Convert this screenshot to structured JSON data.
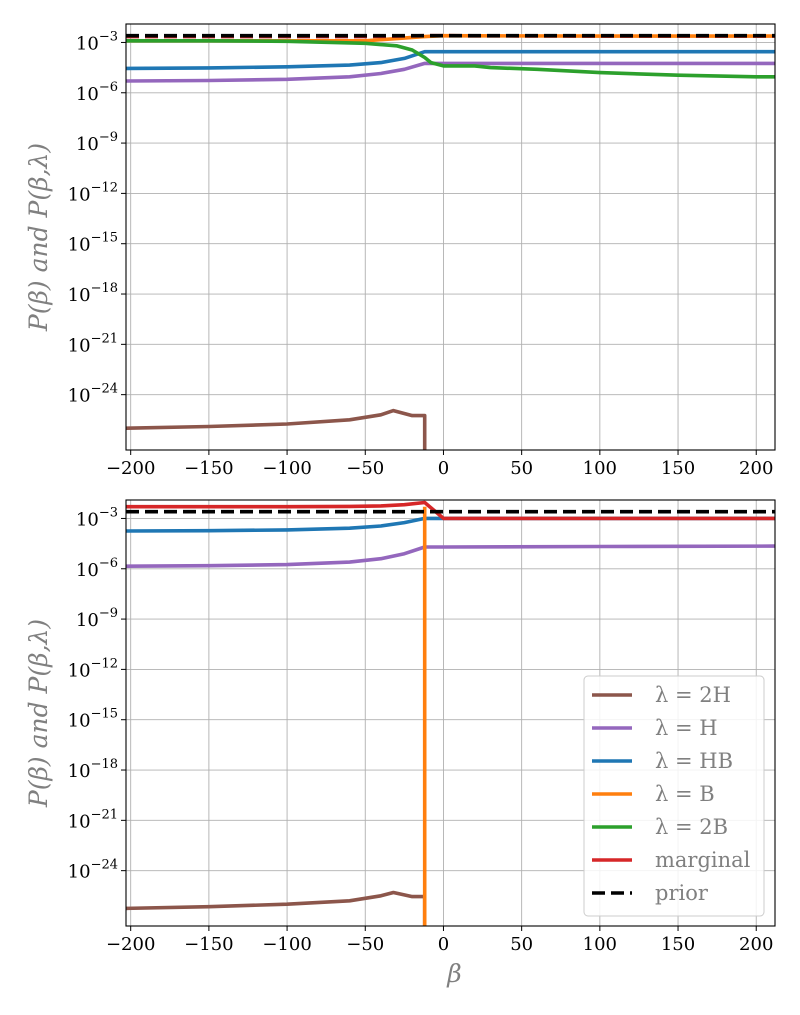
{
  "chart_data": [
    {
      "type": "line",
      "yscale": "log",
      "ylabel": "P(β) and P(β,λ)",
      "xlabel": "",
      "xlim": [
        -203,
        212
      ],
      "ylim_log10": [
        -27.3,
        -1.9
      ],
      "xticks": [
        -200,
        -150,
        -100,
        -50,
        0,
        50,
        100,
        150,
        200
      ],
      "xtick_labels": [
        "−200",
        "−150",
        "−100",
        "−50",
        "0",
        "50",
        "100",
        "150",
        "200"
      ],
      "yticks_log10": [
        -3,
        -6,
        -9,
        -12,
        -15,
        -18,
        -21,
        -24
      ],
      "ytick_labels": [
        "10",
        "10",
        "10",
        "10",
        "10",
        "10",
        "10",
        "10"
      ],
      "ytick_exponents": [
        "−3",
        "−6",
        "−9",
        "−12",
        "−15",
        "−18",
        "−21",
        "−24"
      ],
      "grid": true,
      "series": [
        {
          "name": "λ = 2H",
          "color": "#8c564b",
          "dashed": false,
          "x": [
            -203,
            -150,
            -100,
            -60,
            -40,
            -32,
            -20,
            -12,
            -12
          ],
          "log10y": [
            -26.0,
            -25.9,
            -25.75,
            -25.5,
            -25.2,
            -24.95,
            -25.25,
            -25.25,
            -27.3
          ]
        },
        {
          "name": "λ = H",
          "color": "#9467bd",
          "dashed": false,
          "x": [
            -203,
            -150,
            -100,
            -60,
            -40,
            -25,
            -12,
            0,
            100,
            212
          ],
          "log10y": [
            -5.3,
            -5.27,
            -5.2,
            -5.05,
            -4.85,
            -4.6,
            -4.25,
            -4.25,
            -4.25,
            -4.25
          ]
        },
        {
          "name": "λ = HB",
          "color": "#1f77b4",
          "dashed": false,
          "x": [
            -203,
            -150,
            -100,
            -60,
            -40,
            -25,
            -12,
            0,
            100,
            212
          ],
          "log10y": [
            -4.55,
            -4.52,
            -4.45,
            -4.35,
            -4.2,
            -3.95,
            -3.55,
            -3.55,
            -3.55,
            -3.55
          ]
        },
        {
          "name": "λ = B",
          "color": "#ff7f0e",
          "dashed": false,
          "x": [
            -203,
            -100,
            -50,
            -12,
            0,
            100,
            212
          ],
          "log10y": [
            -2.9,
            -2.9,
            -2.9,
            -2.65,
            -2.6,
            -2.62,
            -2.62
          ]
        },
        {
          "name": "λ = 2B",
          "color": "#2ca02c",
          "dashed": false,
          "x": [
            -203,
            -150,
            -100,
            -50,
            -30,
            -20,
            -12,
            -8,
            0,
            20,
            30,
            60,
            100,
            150,
            200,
            212
          ],
          "log10y": [
            -2.9,
            -2.9,
            -2.93,
            -3.05,
            -3.2,
            -3.45,
            -3.9,
            -4.2,
            -4.4,
            -4.4,
            -4.5,
            -4.6,
            -4.8,
            -4.95,
            -5.05,
            -5.05
          ]
        },
        {
          "name": "marginal",
          "color": "#d62728",
          "dashed": true,
          "x": [
            -203,
            -100,
            -50,
            -12,
            0,
            100,
            212
          ],
          "log10y": [
            -2.65,
            -2.65,
            -2.65,
            -2.6,
            -2.6,
            -2.62,
            -2.62
          ]
        },
        {
          "name": "prior",
          "color": "#000000",
          "dashed": true,
          "x": [
            -203,
            212
          ],
          "log10y": [
            -2.6,
            -2.6
          ]
        }
      ]
    },
    {
      "type": "line",
      "yscale": "log",
      "ylabel": "P(β) and P(β,λ)",
      "xlabel": "β",
      "xlim": [
        -203,
        212
      ],
      "ylim_log10": [
        -27.3,
        -1.9
      ],
      "xticks": [
        -200,
        -150,
        -100,
        -50,
        0,
        50,
        100,
        150,
        200
      ],
      "xtick_labels": [
        "−200",
        "−150",
        "−100",
        "−50",
        "0",
        "50",
        "100",
        "150",
        "200"
      ],
      "yticks_log10": [
        -3,
        -6,
        -9,
        -12,
        -15,
        -18,
        -21,
        -24
      ],
      "ytick_labels": [
        "10",
        "10",
        "10",
        "10",
        "10",
        "10",
        "10",
        "10"
      ],
      "ytick_exponents": [
        "−3",
        "−6",
        "−9",
        "−12",
        "−15",
        "−18",
        "−21",
        "−24"
      ],
      "grid": true,
      "legend_position": "bottom-right",
      "series": [
        {
          "name": "λ = 2H",
          "color": "#8c564b",
          "dashed": false,
          "x": [
            -203,
            -150,
            -100,
            -60,
            -40,
            -32,
            -20,
            -12,
            -12
          ],
          "log10y": [
            -26.25,
            -26.15,
            -26.0,
            -25.8,
            -25.5,
            -25.3,
            -25.55,
            -25.55,
            -27.3
          ]
        },
        {
          "name": "λ = H",
          "color": "#9467bd",
          "dashed": false,
          "x": [
            -203,
            -150,
            -100,
            -60,
            -40,
            -25,
            -12,
            0,
            100,
            212
          ],
          "log10y": [
            -5.85,
            -5.82,
            -5.75,
            -5.6,
            -5.4,
            -5.1,
            -4.7,
            -4.7,
            -4.67,
            -4.65
          ]
        },
        {
          "name": "λ = HB",
          "color": "#1f77b4",
          "dashed": false,
          "x": [
            -203,
            -150,
            -100,
            -60,
            -40,
            -25,
            -12,
            0,
            100,
            212
          ],
          "log10y": [
            -3.75,
            -3.73,
            -3.68,
            -3.58,
            -3.45,
            -3.25,
            -3.0,
            -3.0,
            -3.0,
            -3.0
          ]
        },
        {
          "name": "λ = B",
          "color": "#ff7f0e",
          "dashed": false,
          "x": [
            -12,
            -12
          ],
          "log10y": [
            -27.3,
            -2.3
          ]
        },
        {
          "name": "λ = 2B",
          "color": "#2ca02c",
          "dashed": false,
          "x": [],
          "log10y": []
        },
        {
          "name": "marginal",
          "color": "#d62728",
          "dashed": false,
          "x": [
            -203,
            -150,
            -100,
            -60,
            -40,
            -25,
            -12,
            0,
            100,
            212
          ],
          "log10y": [
            -2.3,
            -2.3,
            -2.3,
            -2.28,
            -2.25,
            -2.18,
            -2.05,
            -3.0,
            -3.0,
            -3.0
          ]
        },
        {
          "name": "prior",
          "color": "#000000",
          "dashed": true,
          "x": [
            -203,
            212
          ],
          "log10y": [
            -2.6,
            -2.6
          ]
        }
      ]
    }
  ],
  "legend": [
    {
      "label": "λ = 2H",
      "color": "#8c564b",
      "dashed": false
    },
    {
      "label": "λ = H",
      "color": "#9467bd",
      "dashed": false
    },
    {
      "label": "λ = HB",
      "color": "#1f77b4",
      "dashed": false
    },
    {
      "label": "λ = B",
      "color": "#ff7f0e",
      "dashed": false
    },
    {
      "label": "λ = 2B",
      "color": "#2ca02c",
      "dashed": false
    },
    {
      "label": "marginal",
      "color": "#d62728",
      "dashed": false
    },
    {
      "label": "prior",
      "color": "#000000",
      "dashed": true
    }
  ]
}
